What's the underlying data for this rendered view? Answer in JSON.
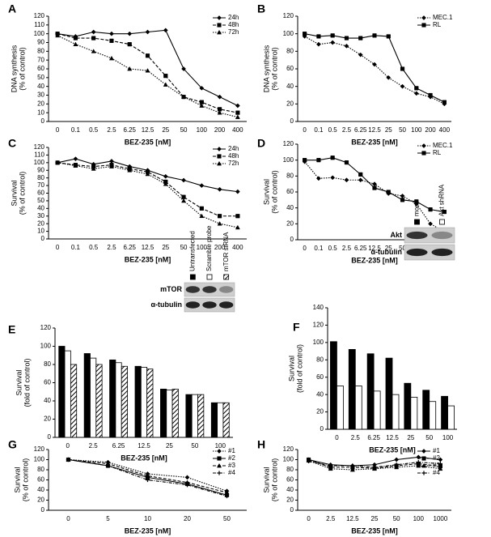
{
  "chart_data": [
    {
      "type": "line",
      "panel": "A",
      "ylabel": [
        "DNA synthesis",
        "(% of control)"
      ],
      "xlabel": "BEZ-235 [nM]",
      "categories": [
        "0",
        "0.1",
        "0.5",
        "2.5",
        "6.25",
        "12.5",
        "25",
        "50",
        "100",
        "200",
        "400"
      ],
      "ylim": [
        0,
        120
      ],
      "yticks": [
        0,
        10,
        20,
        30,
        40,
        50,
        60,
        70,
        80,
        90,
        100,
        110,
        120
      ],
      "series": [
        {
          "name": "24h",
          "color": "#000000",
          "dash": "solid",
          "marker": "diamond",
          "values": [
            100,
            97,
            102,
            100,
            100,
            102,
            104,
            60,
            38,
            28,
            18
          ]
        },
        {
          "name": "48h",
          "color": "#000000",
          "dash": "dashed",
          "marker": "square",
          "values": [
            100,
            95,
            95,
            92,
            88,
            75,
            52,
            28,
            22,
            14,
            10
          ]
        },
        {
          "name": "72h",
          "color": "#000000",
          "dash": "dotted",
          "marker": "triangle",
          "values": [
            98,
            88,
            80,
            72,
            60,
            58,
            42,
            28,
            18,
            10,
            5
          ]
        }
      ]
    },
    {
      "type": "line",
      "panel": "B",
      "ylabel": [
        "DNA synthesis",
        "(% of control)"
      ],
      "xlabel": "BEZ-235 [nM]",
      "categories": [
        "0",
        "0.1",
        "0.5",
        "2.5",
        "6.25",
        "12.5",
        "25",
        "50",
        "100",
        "200",
        "400"
      ],
      "ylim": [
        0,
        120
      ],
      "yticks": [
        0,
        20,
        40,
        60,
        80,
        100,
        120
      ],
      "series": [
        {
          "name": "MEC.1",
          "color": "#000000",
          "dash": "dotted",
          "marker": "diamond",
          "values": [
            97,
            88,
            90,
            86,
            76,
            65,
            50,
            40,
            32,
            28,
            20
          ]
        },
        {
          "name": "RL",
          "color": "#000000",
          "dash": "solid",
          "marker": "square",
          "values": [
            100,
            97,
            98,
            95,
            95,
            98,
            97,
            60,
            38,
            30,
            22
          ]
        }
      ]
    },
    {
      "type": "line",
      "panel": "C",
      "ylabel": [
        "Survival",
        "(% of control)"
      ],
      "xlabel": "BEZ-235 [nM]",
      "categories": [
        "0",
        "0.1",
        "0.5",
        "2.5",
        "6.25",
        "12.5",
        "25",
        "50",
        "100",
        "200",
        "400"
      ],
      "ylim": [
        0,
        120
      ],
      "yticks": [
        0,
        10,
        20,
        30,
        40,
        50,
        60,
        70,
        80,
        90,
        100,
        110,
        120
      ],
      "series": [
        {
          "name": "24h",
          "color": "#000000",
          "dash": "solid",
          "marker": "diamond",
          "values": [
            100,
            105,
            98,
            102,
            95,
            90,
            82,
            77,
            70,
            65,
            62
          ]
        },
        {
          "name": "48h",
          "color": "#000000",
          "dash": "dashed",
          "marker": "square",
          "values": [
            100,
            97,
            95,
            97,
            92,
            88,
            75,
            55,
            40,
            30,
            30
          ]
        },
        {
          "name": "72h",
          "color": "#000000",
          "dash": "dotted",
          "marker": "triangle",
          "values": [
            100,
            96,
            92,
            95,
            90,
            85,
            72,
            50,
            30,
            20,
            15
          ]
        }
      ]
    },
    {
      "type": "line",
      "panel": "D",
      "ylabel": [
        "Survival",
        "(% of control)"
      ],
      "xlabel": "BEZ-235 [nM]",
      "categories": [
        "0",
        "0.1",
        "0.5",
        "2.5",
        "6.25",
        "12.5",
        "25",
        "50",
        "100",
        "200",
        "400"
      ],
      "ylim": [
        0,
        120
      ],
      "yticks": [
        0,
        20,
        40,
        60,
        80,
        100,
        120
      ],
      "series": [
        {
          "name": "MEC.1",
          "color": "#000000",
          "dash": "dotted",
          "marker": "diamond",
          "values": [
            98,
            77,
            78,
            75,
            75,
            70,
            58,
            55,
            45,
            20,
            10
          ]
        },
        {
          "name": "RL",
          "color": "#000000",
          "dash": "solid",
          "marker": "square",
          "values": [
            100,
            100,
            103,
            97,
            82,
            65,
            60,
            50,
            48,
            38,
            35
          ]
        }
      ]
    },
    {
      "type": "bar",
      "panel": "E",
      "ylabel": [
        "Survival",
        "(fold of control)"
      ],
      "xlabel": "BEZ-235 [nM]",
      "categories": [
        "0",
        "2.5",
        "6.25",
        "12.5",
        "25",
        "50",
        "100"
      ],
      "ylim": [
        0,
        120
      ],
      "yticks": [
        0,
        20,
        40,
        60,
        80,
        100,
        120
      ],
      "blot_labels": [
        "mTOR",
        "α-tubulin"
      ],
      "series": [
        {
          "name": "Untransfected",
          "color": "#000000",
          "pattern": "solid",
          "values": [
            100,
            92,
            85,
            78,
            53,
            47,
            38
          ]
        },
        {
          "name": "Scramble probe",
          "color": "#ffffff",
          "pattern": "solid",
          "values": [
            95,
            87,
            82,
            77,
            52,
            47,
            38
          ]
        },
        {
          "name": "mTOR siRNA",
          "color": "#ffffff",
          "pattern": "hatch",
          "values": [
            80,
            80,
            78,
            75,
            53,
            47,
            38
          ]
        }
      ]
    },
    {
      "type": "bar",
      "panel": "F",
      "ylabel": [
        "Survival",
        "(fold of control)"
      ],
      "xlabel": "BEZ-235 [nM]",
      "categories": [
        "0",
        "2.5",
        "6.25",
        "12.5",
        "25",
        "50",
        "100"
      ],
      "ylim": [
        0,
        140
      ],
      "yticks": [
        0,
        20,
        40,
        60,
        80,
        100,
        120,
        140
      ],
      "blot_labels": [
        "Akt",
        "α-tubulin"
      ],
      "series": [
        {
          "name": "mock",
          "color": "#000000",
          "pattern": "solid",
          "values": [
            101,
            92,
            87,
            82,
            53,
            45,
            38
          ]
        },
        {
          "name": "Akt shRNA",
          "color": "#ffffff",
          "pattern": "solid",
          "values": [
            50,
            50,
            44,
            40,
            37,
            32,
            27
          ]
        }
      ]
    },
    {
      "type": "line",
      "panel": "G",
      "ylabel": [
        "Survival",
        "(% of control)"
      ],
      "xlabel": "BEZ-235 [nM]",
      "categories": [
        "0",
        "5",
        "10",
        "20",
        "50"
      ],
      "ylim": [
        0,
        120
      ],
      "yticks": [
        0,
        20,
        40,
        60,
        80,
        100,
        120
      ],
      "series": [
        {
          "name": "#1",
          "color": "#000000",
          "dash": "dotted",
          "marker": "diamond",
          "values": [
            100,
            95,
            72,
            65,
            38
          ]
        },
        {
          "name": "#2",
          "color": "#000000",
          "dash": "solid",
          "marker": "square",
          "values": [
            100,
            88,
            65,
            52,
            30
          ]
        },
        {
          "name": "#3",
          "color": "#000000",
          "dash": "dashed",
          "marker": "triangle",
          "values": [
            100,
            92,
            68,
            55,
            35
          ]
        },
        {
          "name": "#4",
          "color": "#000000",
          "dash": "dashdot",
          "marker": "cross",
          "values": [
            100,
            88,
            60,
            50,
            28
          ]
        }
      ]
    },
    {
      "type": "line",
      "panel": "H",
      "ylabel": [
        "Survival",
        "(% of control)"
      ],
      "xlabel": "BEZ-235 [nM]",
      "categories": [
        "0",
        "2.5",
        "12.5",
        "25",
        "50",
        "100",
        "1000"
      ],
      "ylim": [
        0,
        120
      ],
      "yticks": [
        0,
        20,
        40,
        60,
        80,
        100,
        120
      ],
      "series": [
        {
          "name": "#1",
          "color": "#000000",
          "dash": "solid",
          "marker": "diamond",
          "values": [
            100,
            90,
            88,
            90,
            100,
            105,
            100
          ]
        },
        {
          "name": "#2",
          "color": "#000000",
          "dash": "dashed",
          "marker": "square",
          "values": [
            100,
            85,
            85,
            83,
            88,
            92,
            87
          ]
        },
        {
          "name": "#3",
          "color": "#000000",
          "dash": "dotted",
          "marker": "triangle",
          "values": [
            98,
            82,
            80,
            82,
            85,
            88,
            82
          ]
        },
        {
          "name": "#4",
          "color": "#000000",
          "dash": "dashdot",
          "marker": "cross",
          "values": [
            97,
            88,
            88,
            85,
            90,
            95,
            92
          ]
        }
      ]
    }
  ]
}
